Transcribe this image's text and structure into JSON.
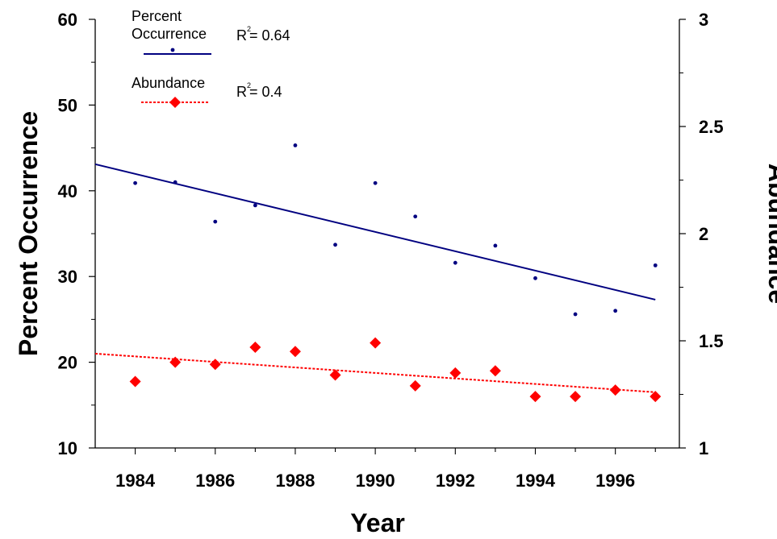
{
  "chart_data": {
    "type": "scatter",
    "xlabel": "Year",
    "ylabel": "Percent Occurrence",
    "y2label": "Abundance",
    "xlim": [
      1983,
      1997.6
    ],
    "ylim": [
      10,
      60
    ],
    "y2lim": [
      1,
      3
    ],
    "xticks": [
      "1984",
      "1986",
      "1988",
      "1990",
      "1992",
      "1994",
      "1996"
    ],
    "yticks": [
      "10",
      "20",
      "30",
      "40",
      "50",
      "60"
    ],
    "y2ticks": [
      "1",
      "1.5",
      "2",
      "2.5",
      "3"
    ],
    "series": [
      {
        "name": "Percent Occurrence",
        "legend_label_lines": [
          "Percent",
          "Occurrence"
        ],
        "axis": "left",
        "color": "#000080",
        "marker": "dot",
        "x": [
          1984,
          1985,
          1986,
          1987,
          1988,
          1989,
          1990,
          1991,
          1992,
          1993,
          1994,
          1995,
          1996,
          1997
        ],
        "y": [
          40.9,
          41.0,
          36.4,
          38.3,
          45.3,
          33.7,
          40.9,
          37.0,
          31.6,
          33.6,
          29.8,
          25.6,
          26.0,
          31.3
        ],
        "trend": {
          "x": [
            1983,
            1997
          ],
          "y": [
            43.1,
            27.3
          ],
          "style": "solid"
        },
        "r2_label": "R",
        "r2_sup": "2",
        "r2_value": "= 0.64"
      },
      {
        "name": "Abundance",
        "legend_label_lines": [
          "Abundance"
        ],
        "axis": "right",
        "color": "#ff0000",
        "marker": "diamond",
        "x": [
          1984,
          1985,
          1986,
          1987,
          1988,
          1989,
          1990,
          1991,
          1992,
          1993,
          1994,
          1995,
          1996,
          1997
        ],
        "y": [
          1.31,
          1.4,
          1.39,
          1.47,
          1.45,
          1.34,
          1.49,
          1.29,
          1.35,
          1.36,
          1.24,
          1.24,
          1.27,
          1.24
        ],
        "trend": {
          "x": [
            1983,
            1997
          ],
          "y": [
            1.44,
            1.26
          ],
          "style": "dotted"
        },
        "r2_label": "R",
        "r2_sup": "2",
        "r2_value": "= 0.4"
      }
    ],
    "grid": false,
    "legend_position": "top-left"
  }
}
